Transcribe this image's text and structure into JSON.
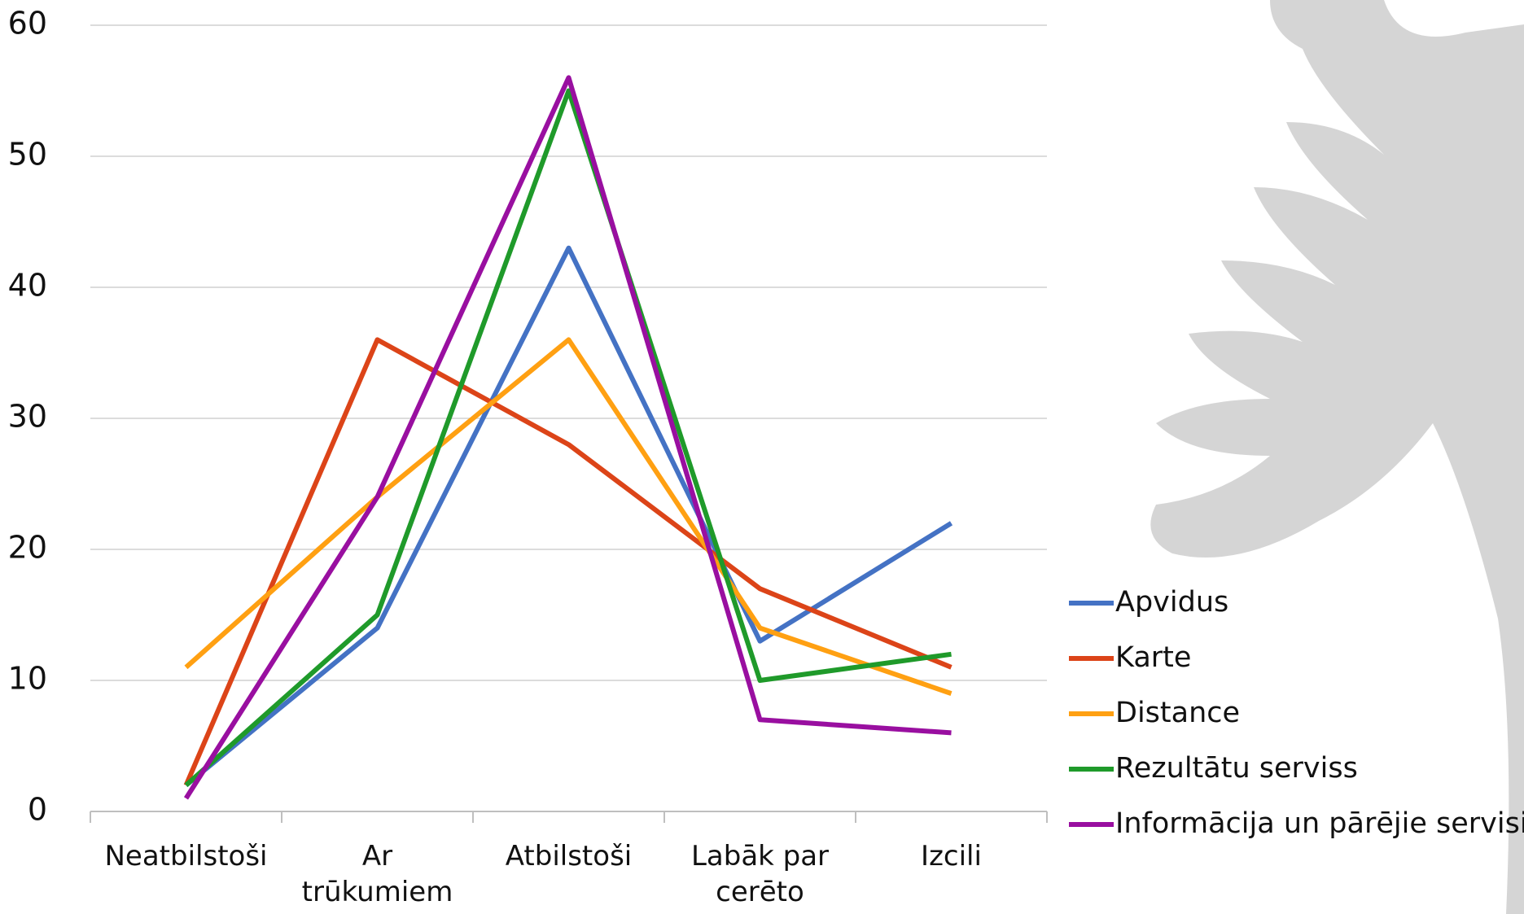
{
  "chart_data": {
    "type": "line",
    "categories": [
      "Neatbilstoši",
      "Ar\ntrūkumiem",
      "Atbilstoši",
      "Labāk par\ncerēto",
      "Izcili"
    ],
    "series": [
      {
        "name": "Apvidus",
        "color": "#4472c4",
        "values": [
          2,
          14,
          43,
          13,
          22
        ]
      },
      {
        "name": "Karte",
        "color": "#dc4418",
        "values": [
          2,
          36,
          28,
          17,
          11
        ]
      },
      {
        "name": "Distance",
        "color": "#ffa012",
        "values": [
          11,
          24,
          36,
          14,
          9
        ]
      },
      {
        "name": "Rezultātu serviss",
        "color": "#1f9a2a",
        "values": [
          2,
          15,
          55,
          10,
          12
        ]
      },
      {
        "name": "Informācija un pārējie servisi",
        "color": "#990fa0",
        "values": [
          1,
          24,
          56,
          7,
          6
        ]
      }
    ],
    "ylim": [
      0,
      60
    ],
    "yticks": [
      0,
      10,
      20,
      30,
      40,
      50,
      60
    ],
    "grid": true,
    "legend": "right"
  }
}
